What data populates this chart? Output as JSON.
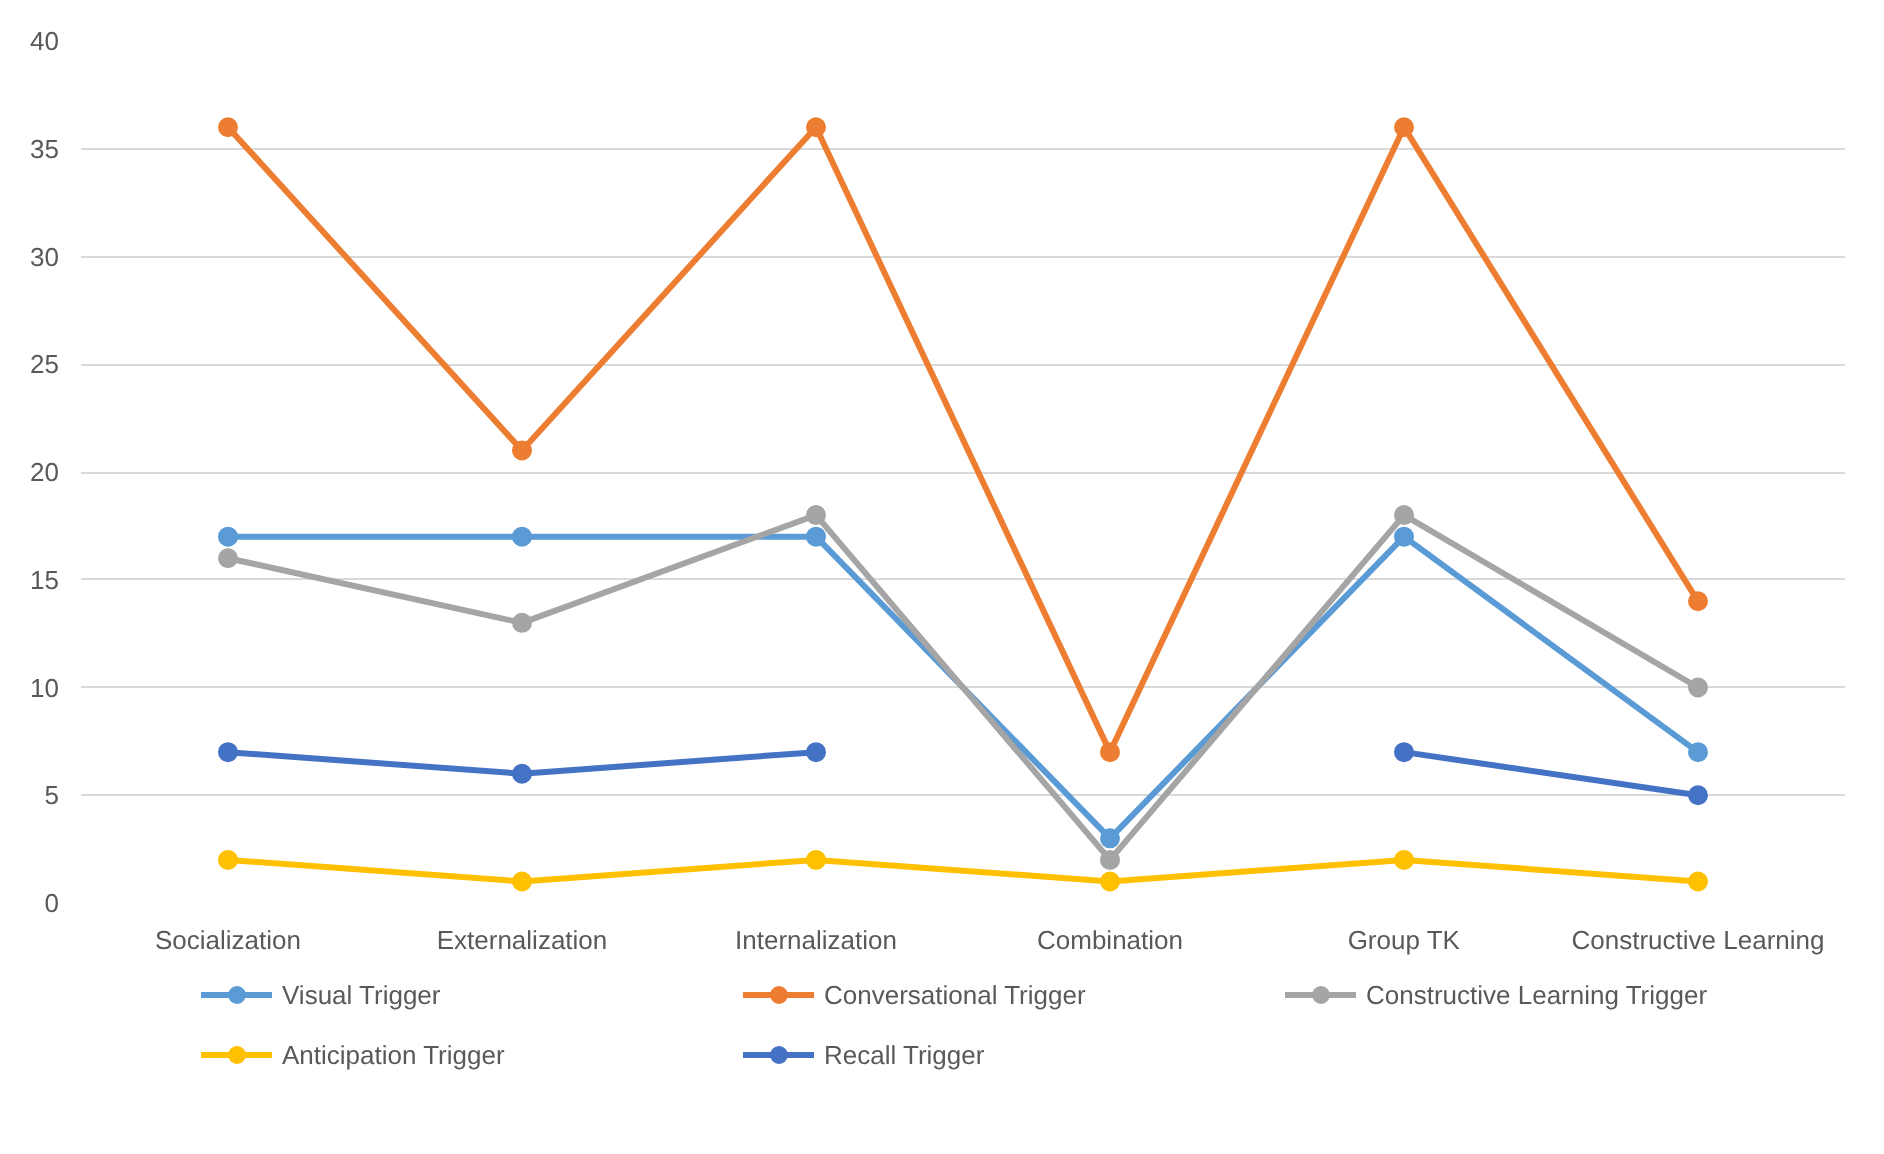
{
  "chart_data": {
    "type": "line",
    "categories": [
      "Socialization",
      "Externalization",
      "Internalization",
      "Combination",
      "Group TK",
      "Constructive Learning"
    ],
    "ylim": [
      0,
      40
    ],
    "yticks": [
      0,
      5,
      10,
      15,
      20,
      25,
      30,
      35,
      40
    ],
    "grid": "y",
    "legend": "bottom",
    "marker": "circle",
    "line_style": "solid",
    "series": [
      {
        "name": "Visual Trigger",
        "color": "#5b9bd5",
        "values": [
          17,
          17,
          17,
          3,
          17,
          7
        ]
      },
      {
        "name": "Conversational Trigger",
        "color": "#ed7d31",
        "values": [
          36,
          21,
          36,
          7,
          36,
          14
        ]
      },
      {
        "name": "Constructive Learning Trigger",
        "color": "#a5a5a5",
        "values": [
          16,
          13,
          18,
          2,
          18,
          10
        ]
      },
      {
        "name": "Anticipation Trigger",
        "color": "#ffc000",
        "values": [
          2,
          1,
          2,
          1,
          2,
          1
        ]
      },
      {
        "name": "Recall Trigger",
        "color": "#4472c4",
        "values": [
          7,
          6,
          7,
          null,
          7,
          5
        ]
      }
    ]
  }
}
